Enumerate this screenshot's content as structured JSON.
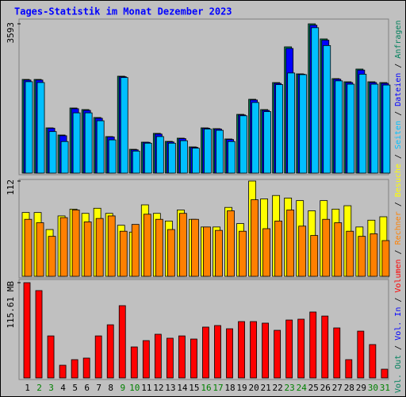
{
  "title": "Tages-Statistik im Monat Dezember 2023",
  "legend_separator": "/",
  "chart_data": [
    {
      "type": "bar",
      "ylim": [
        0,
        3593
      ],
      "yticks": [
        3593
      ],
      "series": [
        {
          "name": "Anfragen",
          "color": "#00805c",
          "values": [
            2255,
            2255,
            1089,
            917,
            1567,
            1529,
            1338,
            879,
            2332,
            573,
            745,
            956,
            764,
            841,
            631,
            1089,
            1070,
            822,
            1414,
            1777,
            1529,
            2179,
            3039,
            2389,
            3593,
            3230,
            2274,
            2198,
            2504,
            2198,
            2179
          ]
        },
        {
          "name": "Dateien",
          "color": "#0000ff",
          "values": [
            2240,
            2240,
            1080,
            900,
            1550,
            1510,
            1320,
            870,
            2320,
            560,
            740,
            940,
            750,
            830,
            620,
            1080,
            1060,
            810,
            1400,
            1760,
            1510,
            2160,
            3000,
            2380,
            3560,
            3200,
            2260,
            2180,
            2480,
            2180,
            2160
          ]
        },
        {
          "name": "Seiten",
          "color": "#00c0ff",
          "values": [
            2200,
            2180,
            1000,
            760,
            1450,
            1450,
            1260,
            800,
            2300,
            530,
            720,
            880,
            720,
            780,
            600,
            1060,
            1030,
            760,
            1380,
            1700,
            1480,
            2130,
            2410,
            2370,
            3500,
            3070,
            2220,
            2140,
            2380,
            2140,
            2120
          ]
        }
      ]
    },
    {
      "type": "bar",
      "ylim": [
        0,
        112
      ],
      "yticks": [
        112
      ],
      "series": [
        {
          "name": "Besuche",
          "color": "#ffff00",
          "values": [
            75,
            75,
            55,
            71,
            79,
            74,
            80,
            74,
            60,
            52,
            84,
            74,
            65,
            78,
            67,
            58,
            58,
            81,
            62,
            112,
            91,
            95,
            92,
            89,
            77,
            89,
            79,
            83,
            58,
            66,
            70
          ]
        },
        {
          "name": "Rechner",
          "color": "#ff8000",
          "values": [
            67,
            63,
            47,
            69,
            78,
            64,
            68,
            71,
            53,
            61,
            73,
            67,
            55,
            74,
            67,
            58,
            54,
            77,
            53,
            90,
            56,
            65,
            78,
            59,
            48,
            67,
            63,
            53,
            47,
            50,
            42
          ]
        }
      ]
    },
    {
      "type": "bar",
      "ylim": [
        0,
        115.61
      ],
      "yticks": [
        {
          "value": 115.61,
          "label": "115.61 MB"
        }
      ],
      "categories": [
        "1",
        "2",
        "3",
        "4",
        "5",
        "6",
        "7",
        "8",
        "9",
        "10",
        "11",
        "12",
        "13",
        "14",
        "15",
        "16",
        "17",
        "18",
        "19",
        "20",
        "21",
        "22",
        "23",
        "24",
        "25",
        "26",
        "27",
        "28",
        "29",
        "30",
        "31"
      ],
      "label_colors": [
        "#000000",
        "#008000",
        "#008000",
        "#000000",
        "#000000",
        "#000000",
        "#000000",
        "#000000",
        "#008000",
        "#008000",
        "#000000",
        "#000000",
        "#000000",
        "#000000",
        "#000000",
        "#008000",
        "#008000",
        "#000000",
        "#000000",
        "#000000",
        "#000000",
        "#000000",
        "#008000",
        "#008000",
        "#000000",
        "#000000",
        "#000000",
        "#000000",
        "#000000",
        "#008000",
        "#008000"
      ],
      "series": [
        {
          "name": "Volumen",
          "color": "#ff0000",
          "values": [
            115.61,
            106,
            51,
            15.4,
            22.2,
            24.1,
            51,
            64.5,
            87.7,
            37.6,
            45.3,
            53,
            48.2,
            51,
            47.2,
            61.7,
            63.6,
            59.7,
            68.4,
            68.4,
            66.5,
            57.8,
            70.3,
            71.3,
            80,
            75.1,
            60.7,
            22.2,
            56.8,
            40.5,
            10.6
          ]
        }
      ],
      "extra_legend": [
        {
          "name": "Vol. In",
          "color": "#0000ff"
        },
        {
          "name": "Vol. Out",
          "color": "#00805c"
        }
      ]
    }
  ]
}
